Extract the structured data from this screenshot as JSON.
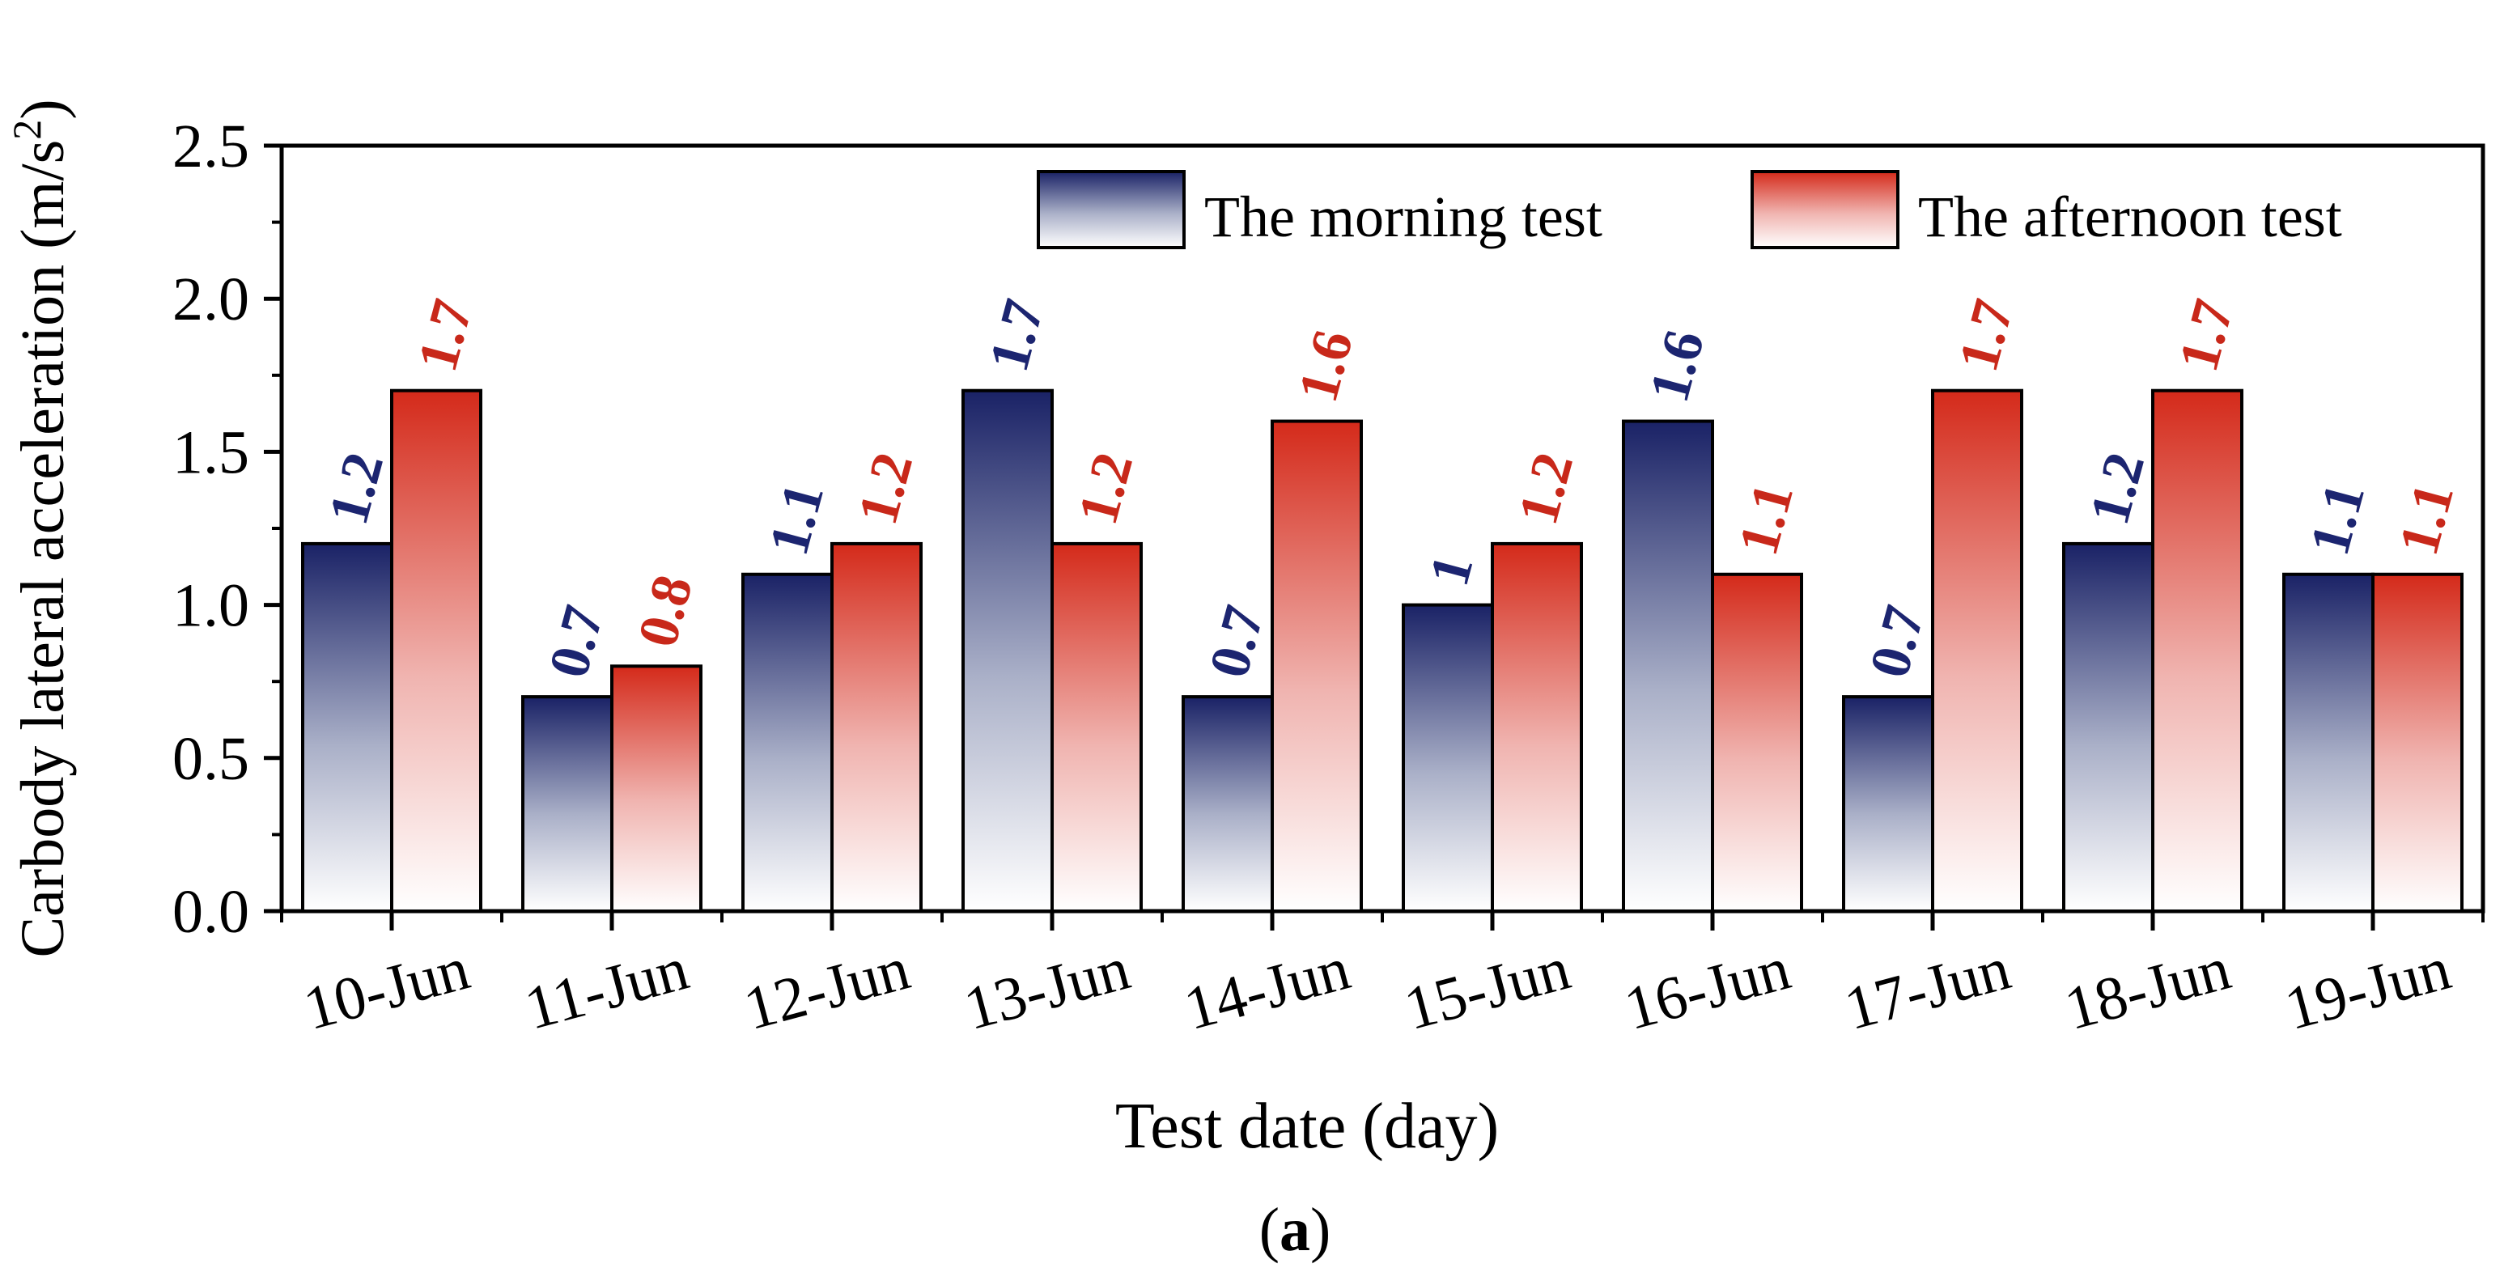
{
  "chart_data": {
    "type": "bar",
    "title": "",
    "xlabel": "Test date (day)",
    "ylabel_main": "Carbody lateral acceleration (m/s",
    "ylabel_sup": "2",
    "ylabel_close": ")",
    "ylim": [
      0,
      2.5
    ],
    "yticks": [
      "0.0",
      "0.5",
      "1.0",
      "1.5",
      "2.0",
      "2.5"
    ],
    "categories": [
      "10-Jun",
      "11-Jun",
      "12-Jun",
      "13-Jun",
      "14-Jun",
      "15-Jun",
      "16-Jun",
      "17-Jun",
      "18-Jun",
      "19-Jun"
    ],
    "series": [
      {
        "name": "The morning test",
        "values": [
          1.2,
          0.7,
          1.1,
          1.7,
          0.7,
          1.0,
          1.6,
          0.7,
          1.2,
          1.1
        ],
        "labels": [
          "1.2",
          "0.7",
          "1.1",
          "1.7",
          "0.7",
          "1",
          "1.6",
          "0.7",
          "1.2",
          "1.1"
        ],
        "color": "#1a2266",
        "label_color": "#1c2570"
      },
      {
        "name": "The afternoon test",
        "values": [
          1.7,
          0.8,
          1.2,
          1.2,
          1.6,
          1.2,
          1.1,
          1.7,
          1.7,
          1.1
        ],
        "labels": [
          "1.7",
          "0.8",
          "1.2",
          "1.2",
          "1.6",
          "1.2",
          "1.1",
          "1.7",
          "1.7",
          "1.1"
        ],
        "color": "#d42a1a",
        "label_color": "#c8281a"
      }
    ],
    "legend_position": "top-right",
    "caption_open": "(",
    "caption_letter": "a",
    "caption_close": ")"
  }
}
